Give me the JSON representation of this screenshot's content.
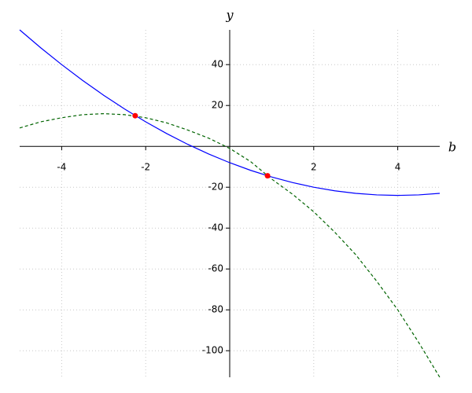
{
  "chart_data": {
    "type": "line",
    "x_label": "b",
    "y_label": "y",
    "xlim": [
      -5,
      5
    ],
    "ylim": [
      -113,
      57
    ],
    "xticks": [
      -4,
      -2,
      2,
      4
    ],
    "yticks": [
      40,
      20,
      -20,
      -40,
      -60,
      -80,
      -100
    ],
    "grid": true,
    "x": [
      -5,
      -4.5,
      -4,
      -3.5,
      -3,
      -2.5,
      -2,
      -1.5,
      -1,
      -0.5,
      0,
      0.5,
      1,
      1.5,
      2,
      2.5,
      3,
      3.5,
      4,
      4.5,
      5
    ],
    "series": [
      {
        "color": "#0000ff",
        "style": "solid",
        "values": [
          57,
          48.25,
          40,
          32.25,
          25,
          18.25,
          12,
          6.25,
          1,
          -3.75,
          -8,
          -11.75,
          -15,
          -17.75,
          -20,
          -21.75,
          -23,
          -23.75,
          -24,
          -23.75,
          -23
        ]
      },
      {
        "color": "#006400",
        "style": "dashed",
        "values": [
          9,
          12,
          14,
          15.5,
          16,
          15.5,
          14,
          11.5,
          8,
          4,
          -1,
          -7.5,
          -16,
          -23.5,
          -32,
          -42,
          -53,
          -66,
          -80,
          -96,
          -113
        ]
      }
    ],
    "points": {
      "color": "#ff0000",
      "x": [
        -2.25,
        0.9
      ],
      "values": [
        15,
        -14.4
      ]
    }
  }
}
